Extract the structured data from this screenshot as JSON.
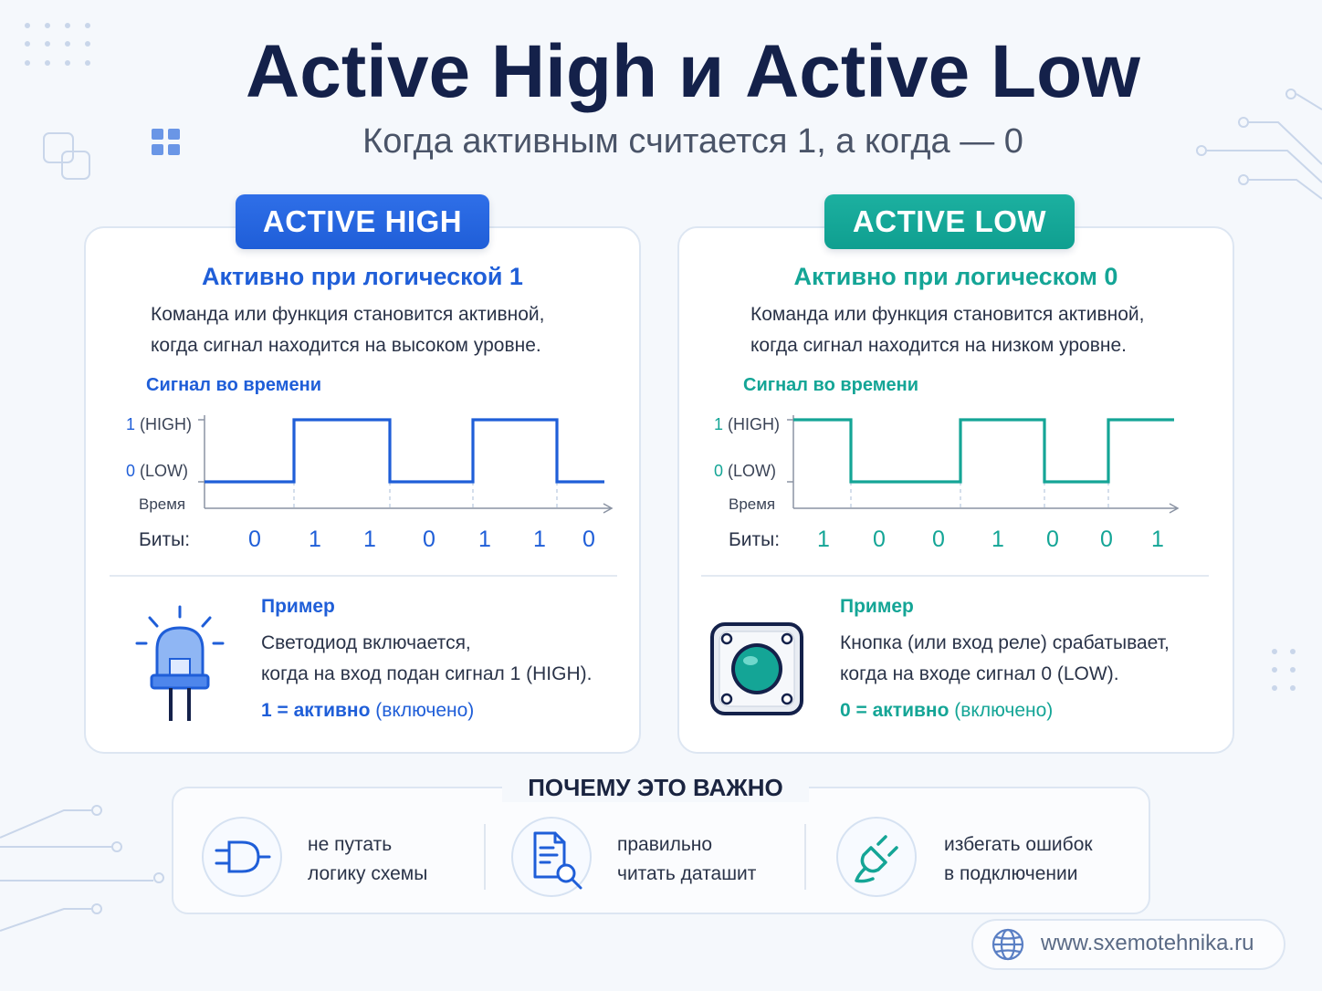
{
  "header": {
    "title": "Active High и Active Low",
    "subtitle": "Когда активным считается 1, а когда — 0"
  },
  "colors": {
    "high": "#1f5ed8",
    "low": "#14a596",
    "title": "#14214a"
  },
  "active_high": {
    "badge": "ACTIVE HIGH",
    "heading": "Активно при логической 1",
    "desc_line1": "Команда или функция становится активной,",
    "desc_line2": "когда сигнал находится на высоком уровне.",
    "signal_label": "Сигнал во времени",
    "level_high_num": "1",
    "level_high_txt": "(HIGH)",
    "level_low_num": "0",
    "level_low_txt": "(LOW)",
    "time_label": "Время",
    "bits_label": "Биты:",
    "bits": [
      "0",
      "1",
      "1",
      "0",
      "1",
      "1",
      "0"
    ],
    "example_title": "Пример",
    "example_line1": "Светодиод включается,",
    "example_line2": "когда на вход подан сигнал 1 (HIGH).",
    "active_value": "1 = активно",
    "active_note": "(включено)",
    "example_icon": "led-icon"
  },
  "active_low": {
    "badge": "ACTIVE LOW",
    "heading": "Активно при логическом 0",
    "desc_line1": "Команда или функция становится активной,",
    "desc_line2": "когда сигнал находится на низком уровне.",
    "signal_label": "Сигнал во времени",
    "level_high_num": "1",
    "level_high_txt": "(HIGH)",
    "level_low_num": "0",
    "level_low_txt": "(LOW)",
    "time_label": "Время",
    "bits_label": "Биты:",
    "bits": [
      "1",
      "0",
      "0",
      "1",
      "0",
      "0",
      "1"
    ],
    "example_title": "Пример",
    "example_line1": "Кнопка (или вход реле) срабатывает,",
    "example_line2": "когда на входе сигнал 0 (LOW).",
    "active_value": "0 = активно",
    "active_note": "(включено)",
    "example_icon": "push-button-icon"
  },
  "why": {
    "title": "ПОЧЕМУ ЭТО ВАЖНО",
    "items": [
      {
        "icon": "and-gate-icon",
        "line1": "не путать",
        "line2": "логику схемы"
      },
      {
        "icon": "datasheet-search-icon",
        "line1": "правильно",
        "line2": "читать даташит"
      },
      {
        "icon": "plug-icon",
        "line1": "избегать ошибок",
        "line2": "в подключении"
      }
    ]
  },
  "footer": {
    "site": "www.sxemotehnika.ru",
    "icon": "globe-icon"
  }
}
